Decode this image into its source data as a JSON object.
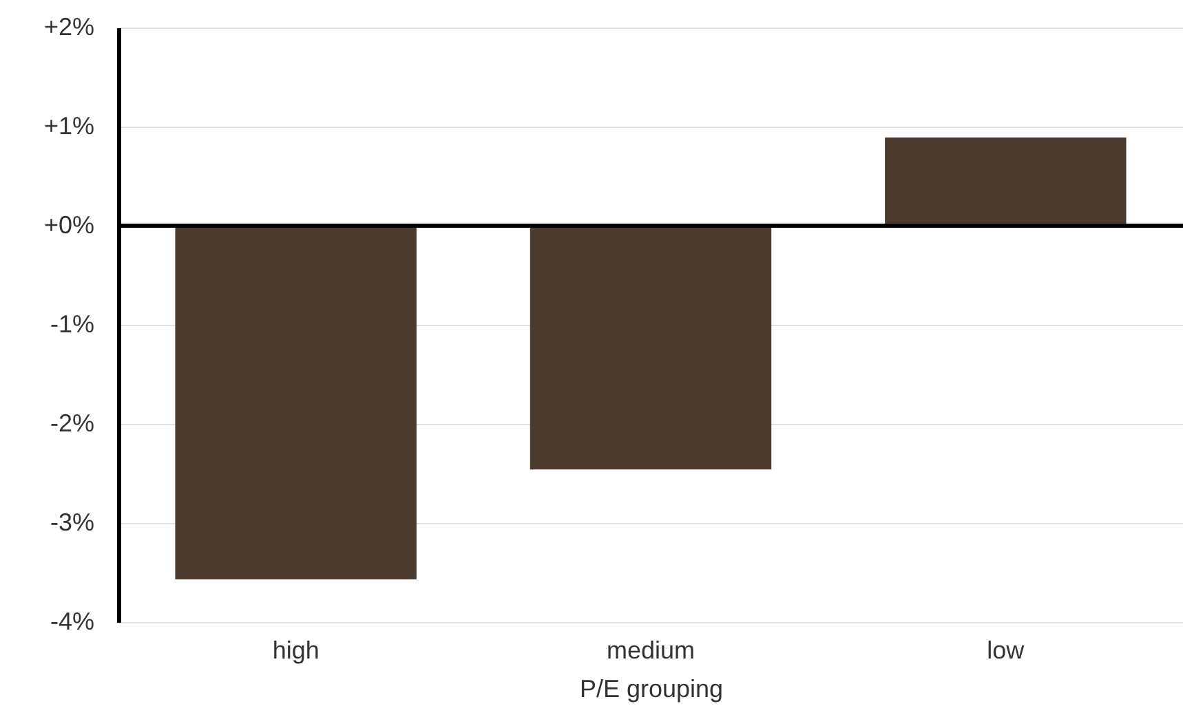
{
  "chart_data": {
    "type": "bar",
    "xlabel": "P/E grouping",
    "categories": [
      "high",
      "medium",
      "low"
    ],
    "values": [
      -3.57,
      -2.46,
      0.89
    ],
    "color": "#4b3b2f",
    "ylim": [
      -4,
      2
    ],
    "yticks": [
      {
        "value": -4,
        "label": "-4%"
      },
      {
        "value": -3,
        "label": "-3%"
      },
      {
        "value": -2,
        "label": "-2%"
      },
      {
        "value": -1,
        "label": "-1%"
      },
      {
        "value": 0,
        "label": "+0%"
      },
      {
        "value": 1,
        "label": "+1%"
      },
      {
        "value": 2,
        "label": "+2%"
      }
    ],
    "grid": "y",
    "ref_lines": [
      {
        "axis": "y",
        "value": 0,
        "color": "#000000"
      }
    ]
  }
}
